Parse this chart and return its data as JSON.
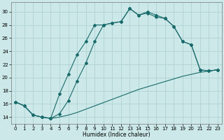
{
  "xlabel": "Humidex (Indice chaleur)",
  "xlim": [
    -0.5,
    23.5
  ],
  "ylim": [
    13.0,
    31.5
  ],
  "yticks": [
    14,
    16,
    18,
    20,
    22,
    24,
    26,
    28,
    30
  ],
  "xticks": [
    0,
    1,
    2,
    3,
    4,
    5,
    6,
    7,
    8,
    9,
    10,
    11,
    12,
    13,
    14,
    15,
    16,
    17,
    18,
    19,
    20,
    21,
    22,
    23
  ],
  "bg_color": "#cce8e8",
  "line_color": "#1a6b6b",
  "grid_color": "#aacece",
  "line1_x": [
    0,
    1,
    2,
    3,
    4,
    5,
    6,
    7,
    8,
    9,
    10,
    11,
    12,
    13,
    14,
    15,
    16,
    17,
    18,
    19,
    20,
    21,
    22,
    23
  ],
  "line1_y": [
    16.3,
    15.7,
    14.3,
    14.0,
    13.8,
    14.0,
    14.3,
    14.7,
    15.2,
    15.7,
    16.2,
    16.7,
    17.2,
    17.7,
    18.2,
    18.6,
    19.0,
    19.4,
    19.8,
    20.2,
    20.5,
    20.8,
    21.0,
    21.2
  ],
  "line2_x": [
    0,
    1,
    2,
    3,
    4,
    5,
    6,
    7,
    8,
    9,
    10,
    11,
    12,
    13,
    14,
    15,
    16,
    17,
    18,
    19,
    20,
    21,
    22,
    23
  ],
  "line2_y": [
    16.3,
    15.7,
    14.3,
    14.0,
    13.8,
    14.5,
    16.5,
    19.5,
    22.2,
    25.5,
    28.0,
    28.3,
    28.5,
    30.5,
    29.5,
    29.8,
    29.2,
    29.0,
    27.8,
    25.5,
    25.0,
    21.2,
    21.0,
    21.2
  ],
  "line3_x": [
    0,
    1,
    2,
    3,
    4,
    5,
    6,
    7,
    8,
    9,
    10,
    11,
    12,
    13,
    14,
    15,
    16,
    17,
    18,
    19,
    20,
    21,
    22,
    23
  ],
  "line3_y": [
    16.3,
    15.7,
    14.3,
    14.0,
    13.8,
    17.5,
    20.5,
    23.5,
    25.5,
    28.0,
    28.0,
    28.3,
    28.5,
    30.5,
    29.5,
    30.0,
    29.5,
    29.0,
    27.8,
    25.5,
    25.0,
    21.2,
    21.0,
    21.2
  ]
}
